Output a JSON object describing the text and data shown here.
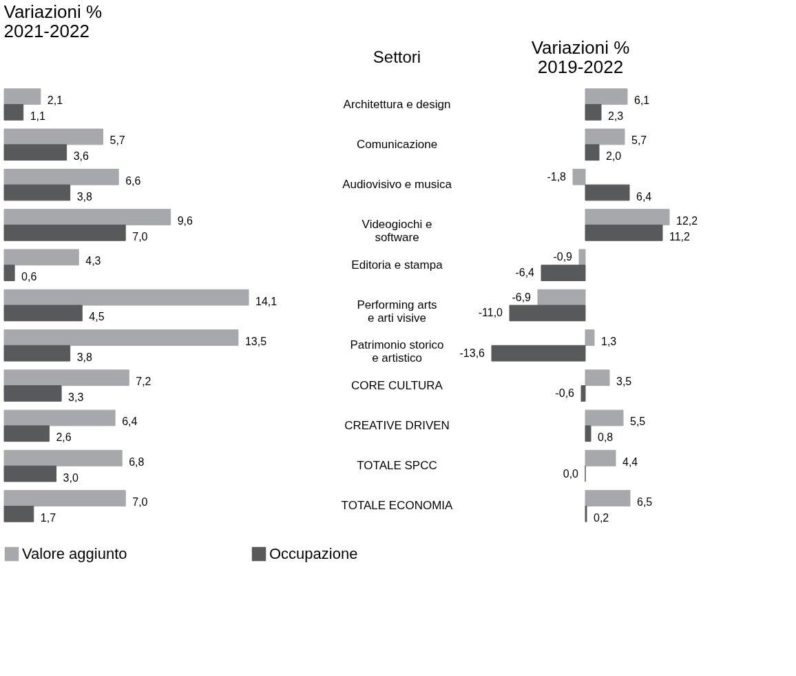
{
  "chart_data": [
    {
      "type": "bar",
      "orientation": "horizontal",
      "title": "Variazioni %\n2021-2022",
      "ylabel": "Settori",
      "categories": [
        "Architettura e design",
        "Comunicazione",
        "Audiovisivo e musica",
        "Videogiochi e\nsoftware",
        "Editoria e stampa",
        "Performing arts\ne arti visive",
        "Patrimonio storico\ne artistico",
        "CORE CULTURA",
        "CREATIVE DRIVEN",
        "TOTALE SPCC",
        "TOTALE ECONOMIA"
      ],
      "series": [
        {
          "name": "Valore aggiunto",
          "color": "#a7a8ab",
          "values": [
            2.1,
            5.7,
            6.6,
            9.6,
            4.3,
            14.1,
            13.5,
            7.2,
            6.4,
            6.8,
            7.0
          ],
          "value_labels": [
            "2,1",
            "5,7",
            "6,6",
            "9,6",
            "4,3",
            "14,1",
            "13,5",
            "7,2",
            "6,4",
            "6,8",
            "7,0"
          ]
        },
        {
          "name": "Occupazione",
          "color": "#58595b",
          "values": [
            1.1,
            3.6,
            3.8,
            7.0,
            0.6,
            4.5,
            3.8,
            3.3,
            2.6,
            3.0,
            1.7
          ],
          "value_labels": [
            "1,1",
            "3,6",
            "3,8",
            "7,0",
            "0,6",
            "4,5",
            "3,8",
            "3,3",
            "2,6",
            "3,0",
            "1,7"
          ]
        }
      ],
      "tick_labels": "y",
      "legend": "bottom"
    },
    {
      "type": "bar",
      "orientation": "horizontal",
      "title": "Variazioni %\n2019-2022",
      "series": [
        {
          "name": "Valore aggiunto",
          "color": "#a7a8ab",
          "values": [
            6.1,
            5.7,
            -1.8,
            12.2,
            -0.9,
            -6.9,
            1.3,
            3.5,
            5.5,
            4.4,
            6.5
          ],
          "value_labels": [
            "6,1",
            "5,7",
            "-1,8",
            "12,2",
            "-0,9",
            "-6,9",
            "1,3",
            "3,5",
            "5,5",
            "4,4",
            "6,5"
          ]
        },
        {
          "name": "Occupazione",
          "color": "#58595b",
          "values": [
            2.3,
            2.0,
            6.4,
            11.2,
            -6.4,
            -11.0,
            -13.6,
            -0.6,
            0.8,
            0.0,
            0.2
          ],
          "value_labels": [
            "2,3",
            "2,0",
            "6,4",
            "11,2",
            "-6,4",
            "-11,0",
            "-13,6",
            "-0,6",
            "0,8",
            "0,0",
            "0,2"
          ]
        }
      ],
      "tick_labels": false,
      "legend": "bottom"
    }
  ]
}
